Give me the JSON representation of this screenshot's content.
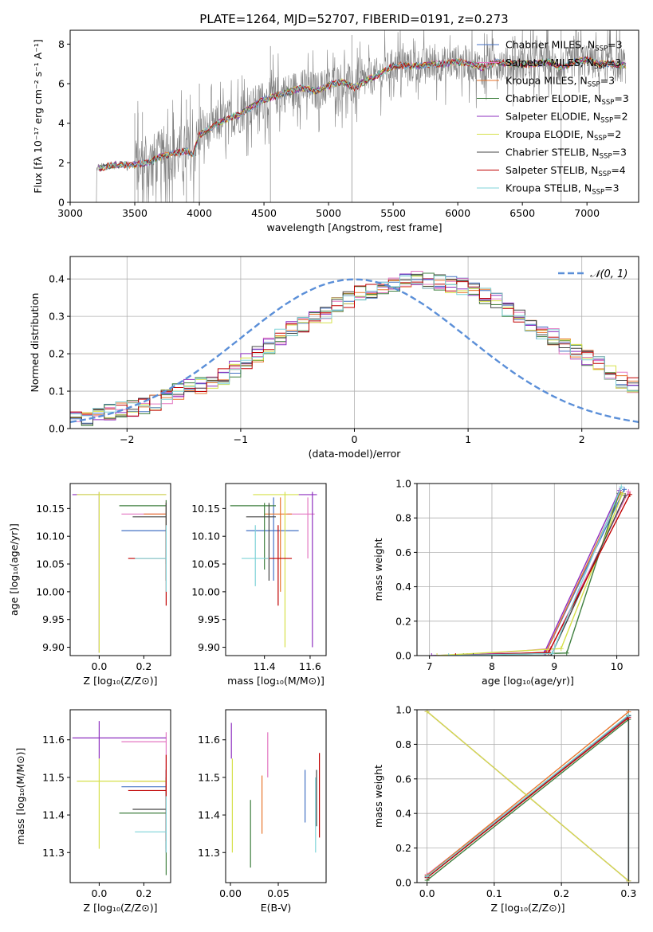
{
  "figure": {
    "title": "PLATE=1264, MJD=52707, FIBERID=0191, z=0.273"
  },
  "legend_models": [
    {
      "label": "Chabrier MILES, N",
      "sub": "SSP",
      "suffix": "=3",
      "color": "#4472c4"
    },
    {
      "label": "Salpeter MILES, N",
      "sub": "SSP",
      "suffix": "=3",
      "color": "#e377c2"
    },
    {
      "label": "Kroupa MILES, N",
      "sub": "SSP",
      "suffix": "=3",
      "color": "#e8762d"
    },
    {
      "label": "Chabrier ELODIE, N",
      "sub": "SSP",
      "suffix": "=3",
      "color": "#3f7f3f"
    },
    {
      "label": "Salpeter ELODIE, N",
      "sub": "SSP",
      "suffix": "=2",
      "color": "#8e2fbf"
    },
    {
      "label": "Kroupa ELODIE, N",
      "sub": "SSP",
      "suffix": "=2",
      "color": "#d6e04a"
    },
    {
      "label": "Chabrier STELIB, N",
      "sub": "SSP",
      "suffix": "=3",
      "color": "#444444"
    },
    {
      "label": "Salpeter STELIB, N",
      "sub": "SSP",
      "suffix": "=4",
      "color": "#c00000"
    },
    {
      "label": "Kroupa STELIB, N",
      "sub": "SSP",
      "suffix": "=3",
      "color": "#7fd3d8"
    }
  ],
  "chart_data": [
    {
      "type": "line",
      "xlabel": "wavelength [Angstrom, rest frame]",
      "ylabel": "Flux [fλ 10⁻¹⁷ erg cm⁻² s⁻¹ A⁻¹]",
      "xlim": [
        3000,
        7400
      ],
      "ylim": [
        0,
        8.7
      ],
      "xticks": [
        3000,
        3500,
        4000,
        4500,
        5000,
        5500,
        6000,
        6500,
        7000
      ],
      "yticks": [
        0,
        2,
        4,
        6,
        8
      ],
      "data_color": "#808080",
      "data_range": [
        3200,
        7300
      ],
      "continuum": {
        "x": [
          3200,
          3350,
          3500,
          3600,
          3700,
          3800,
          3900,
          3950,
          4000,
          4100,
          4200,
          4300,
          4400,
          4500,
          4600,
          4700,
          4800,
          4900,
          5000,
          5100,
          5200,
          5300,
          5400,
          5500,
          5600,
          5700,
          5800,
          5900,
          6000,
          6100,
          6200,
          6300,
          6400,
          6500,
          6600,
          6700,
          6800,
          6900,
          7000,
          7100,
          7200,
          7300
        ],
        "y": [
          1.7,
          1.9,
          1.9,
          2.0,
          2.3,
          2.5,
          2.6,
          2.4,
          3.4,
          3.8,
          4.2,
          4.4,
          4.8,
          5.2,
          5.4,
          5.6,
          5.8,
          5.6,
          5.9,
          6.1,
          5.8,
          6.2,
          6.5,
          6.9,
          6.9,
          6.9,
          7.0,
          7.0,
          7.1,
          7.0,
          6.8,
          7.1,
          7.0,
          7.0,
          7.0,
          7.1,
          6.8,
          7.1,
          7.2,
          7.0,
          7.0,
          6.9
        ]
      }
    },
    {
      "type": "bar",
      "xlabel": "(data-model)/error",
      "ylabel": "Normed distribution",
      "xlim": [
        -2.5,
        2.5
      ],
      "ylim": [
        0,
        0.46
      ],
      "xticks": [
        -2,
        -1,
        0,
        1,
        2
      ],
      "yticks": [
        0.0,
        0.1,
        0.2,
        0.3,
        0.4
      ],
      "grid": true,
      "legend": {
        "label": "𝒩(0, 1)",
        "position": "top-right",
        "color": "#5b8fd8"
      },
      "bin_width": 0.1,
      "x_start": -2.5,
      "series_base": [
        0.025,
        0.03,
        0.035,
        0.045,
        0.05,
        0.055,
        0.06,
        0.07,
        0.085,
        0.1,
        0.11,
        0.115,
        0.125,
        0.14,
        0.16,
        0.18,
        0.2,
        0.22,
        0.245,
        0.265,
        0.275,
        0.29,
        0.305,
        0.33,
        0.345,
        0.36,
        0.37,
        0.38,
        0.385,
        0.4,
        0.4,
        0.395,
        0.39,
        0.385,
        0.38,
        0.37,
        0.355,
        0.34,
        0.315,
        0.3,
        0.28,
        0.255,
        0.245,
        0.22,
        0.205,
        0.19,
        0.17,
        0.15,
        0.13,
        0.115,
        0.1
      ]
    },
    {
      "type": "scatter",
      "name": "age-vs-Z",
      "xlabel": "Z [log₁₀(Z/Z⊙)]",
      "ylabel": "age  [log₁₀(age/yr)]",
      "xlim": [
        -0.13,
        0.32
      ],
      "ylim": [
        9.885,
        10.195
      ],
      "xticks": [
        0.0,
        0.2
      ],
      "yticks": [
        9.9,
        9.95,
        10.0,
        10.05,
        10.1,
        10.15
      ]
    },
    {
      "type": "scatter",
      "name": "age-vs-mass",
      "xlabel": "mass [log₁₀(M/M⊙)]",
      "xlim": [
        11.23,
        11.67
      ],
      "ylim": [
        9.885,
        10.195
      ],
      "xticks": [
        11.4,
        11.6
      ],
      "yticks": [
        9.9,
        9.95,
        10.0,
        10.05,
        10.1,
        10.15
      ]
    },
    {
      "type": "line",
      "name": "weight-vs-age",
      "xlabel": "age  [log₁₀(age/yr)]",
      "ylabel": "mass weight",
      "xlim": [
        6.8,
        10.35
      ],
      "ylim": [
        0,
        1.0
      ],
      "xticks": [
        7,
        8,
        9,
        10
      ],
      "yticks": [
        0.0,
        0.2,
        0.4,
        0.6,
        0.8,
        1.0
      ],
      "grid": true
    },
    {
      "type": "scatter",
      "name": "mass-vs-Z",
      "xlabel": "Z [log₁₀(Z/Z⊙)]",
      "ylabel": "mass [log₁₀(M/M⊙)]",
      "xlim": [
        -0.13,
        0.32
      ],
      "ylim": [
        11.22,
        11.68
      ],
      "xticks": [
        0.0,
        0.2
      ],
      "yticks": [
        11.3,
        11.4,
        11.5,
        11.6
      ]
    },
    {
      "type": "scatter",
      "name": "mass-vs-EBV",
      "xlabel": "E(B-V)",
      "xlim": [
        -0.005,
        0.1
      ],
      "ylim": [
        11.22,
        11.68
      ],
      "xticks": [
        0.0,
        0.05
      ],
      "yticks": [
        11.3,
        11.4,
        11.5,
        11.6
      ]
    },
    {
      "type": "line",
      "name": "weight-vs-Z",
      "xlabel": "Z [log₁₀(Z/Z⊙)]",
      "ylabel": "mass weight",
      "xlim": [
        -0.015,
        0.315
      ],
      "ylim": [
        0,
        1.0
      ],
      "xticks": [
        0.0,
        0.1,
        0.2,
        0.3
      ],
      "yticks": [
        0.0,
        0.2,
        0.4,
        0.6,
        0.8,
        1.0
      ],
      "grid": true
    }
  ]
}
